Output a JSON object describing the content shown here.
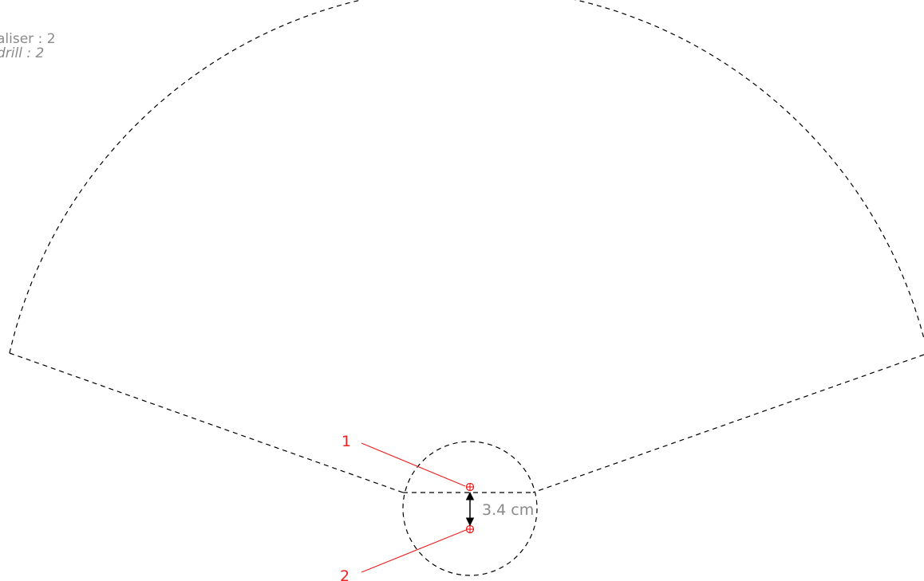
{
  "legend": {
    "line1": "aliser : 2",
    "line2": "drill : 2"
  },
  "points": [
    {
      "label": "1"
    },
    {
      "label": "2"
    }
  ],
  "dimension": {
    "text": "3.4 cm"
  },
  "colors": {
    "marker": "#ee2222",
    "outline": "#000000",
    "text": "#8a8a8a"
  }
}
